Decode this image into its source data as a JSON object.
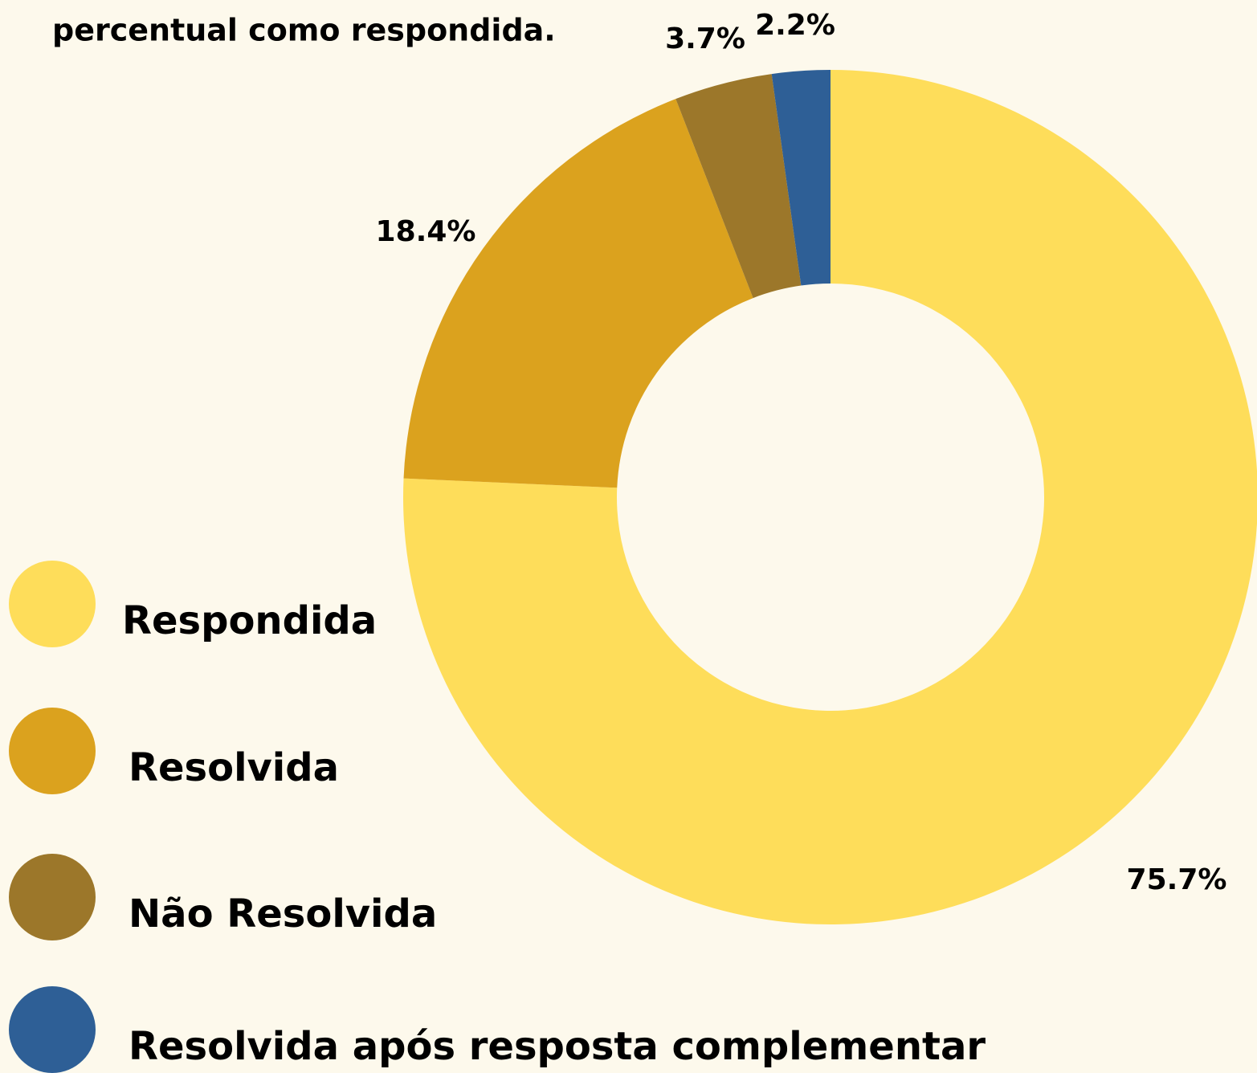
{
  "chart_data": {
    "type": "pie",
    "title": "percentual como respondida.",
    "categories": [
      "Respondida",
      "Resolvida",
      "Não Resolvida",
      "Resolvida após resposta complementar"
    ],
    "values": [
      75.7,
      18.4,
      3.7,
      2.2
    ],
    "value_labels": [
      "75.7%",
      "18.4%",
      "3.7%",
      "2.2%"
    ],
    "colors": [
      "#fedd5a",
      "#dba21e",
      "#9c772a",
      "#2e5f96"
    ]
  }
}
